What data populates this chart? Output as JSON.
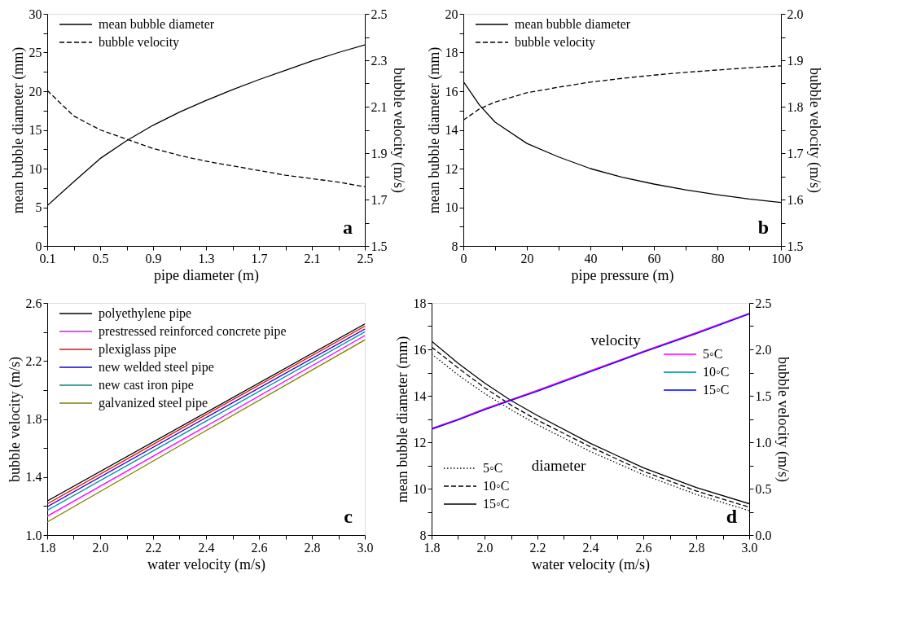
{
  "chart_data": [
    {
      "type": "line",
      "xlabel": "pipe diameter (m)",
      "ylabel": "mean bubble diameter (mm)",
      "y2label": "bubble velocity (m/s)",
      "x": [
        0.1,
        0.3,
        0.5,
        0.7,
        0.9,
        1.1,
        1.3,
        1.5,
        1.7,
        1.9,
        2.1,
        2.3,
        2.5
      ],
      "series": [
        {
          "name": "mean bubble diameter",
          "color": "#000000",
          "line_style": "solid",
          "values": [
            5.2,
            8.3,
            11.3,
            13.6,
            15.6,
            17.3,
            18.8,
            20.2,
            21.5,
            22.7,
            23.9,
            25.0,
            26.0
          ]
        },
        {
          "name": "bubble velocity",
          "color": "#000000",
          "line_style": "dashed",
          "axis": "y2",
          "values": [
            2.17,
            2.06,
            2.0,
            1.96,
            1.92,
            1.89,
            1.865,
            1.845,
            1.825,
            1.805,
            1.79,
            1.775,
            1.755
          ]
        }
      ],
      "xlim": [
        0.1,
        2.5
      ],
      "ylim": [
        0,
        30
      ],
      "y2lim": [
        1.5,
        2.5
      ],
      "xticks": [
        0.1,
        {
          "value": 0.3,
          "label": null
        },
        0.5,
        {
          "value": 0.7,
          "label": null
        },
        0.9,
        {
          "value": 1.1,
          "label": null
        },
        1.3,
        {
          "value": 1.5,
          "label": null
        },
        1.7,
        {
          "value": 1.9,
          "label": null
        },
        2.1,
        {
          "value": 2.3,
          "label": null
        },
        2.5
      ],
      "yticks": [
        0,
        {
          "value": 2.5,
          "label": null
        },
        5,
        {
          "value": 7.5,
          "label": null
        },
        10,
        {
          "value": 12.5,
          "label": null
        },
        15,
        {
          "value": 17.5,
          "label": null
        },
        20,
        {
          "value": 22.5,
          "label": null
        },
        25,
        {
          "value": 27.5,
          "label": null
        },
        30
      ],
      "y2ticks": [
        1.5,
        {
          "value": 1.6,
          "label": null
        },
        1.7,
        {
          "value": 1.8,
          "label": null
        },
        1.9,
        {
          "value": 2.0,
          "label": null
        },
        2.1,
        {
          "value": 2.2,
          "label": null
        },
        2.3,
        {
          "value": 2.4,
          "label": null
        },
        2.5
      ],
      "legend": "top left",
      "grid": false,
      "annotations": [
        "a"
      ]
    },
    {
      "type": "line",
      "xlabel": "pipe pressure (m)",
      "ylabel": "mean bubble diameter (mm)",
      "y2label": "bubble velocity (m/s)",
      "x": [
        0,
        5,
        10,
        20,
        30,
        40,
        50,
        60,
        70,
        80,
        90,
        100
      ],
      "series": [
        {
          "name": "mean bubble diameter",
          "color": "#000000",
          "line_style": "solid",
          "values": [
            16.5,
            15.3,
            14.4,
            13.3,
            12.6,
            12.0,
            11.55,
            11.2,
            10.9,
            10.65,
            10.43,
            10.25
          ]
        },
        {
          "name": "bubble velocity",
          "color": "#000000",
          "line_style": "dashed",
          "axis": "y2",
          "values": [
            1.771,
            1.795,
            1.81,
            1.83,
            1.842,
            1.853,
            1.861,
            1.868,
            1.874,
            1.879,
            1.884,
            1.888
          ]
        }
      ],
      "xlim": [
        0,
        100
      ],
      "ylim": [
        8,
        20
      ],
      "y2lim": [
        1.5,
        2.0
      ],
      "xticks": [
        0,
        {
          "value": 10,
          "label": null
        },
        20,
        {
          "value": 30,
          "label": null
        },
        40,
        {
          "value": 50,
          "label": null
        },
        60,
        {
          "value": 70,
          "label": null
        },
        80,
        {
          "value": 90,
          "label": null
        },
        100
      ],
      "yticks": [
        8,
        {
          "value": 9,
          "label": null
        },
        10,
        {
          "value": 11,
          "label": null
        },
        12,
        {
          "value": 13,
          "label": null
        },
        14,
        {
          "value": 15,
          "label": null
        },
        16,
        {
          "value": 17,
          "label": null
        },
        18,
        {
          "value": 19,
          "label": null
        },
        20
      ],
      "y2ticks": [
        1.5,
        {
          "value": 1.55,
          "label": null
        },
        1.6,
        {
          "value": 1.65,
          "label": null
        },
        1.7,
        {
          "value": 1.75,
          "label": null
        },
        1.8,
        {
          "value": 1.85,
          "label": null
        },
        1.9,
        {
          "value": 1.95,
          "label": null
        },
        {
          "value": 2,
          "label": "2.0"
        }
      ],
      "legend": "top left",
      "grid": false,
      "annotations": [
        "b"
      ]
    },
    {
      "type": "line",
      "xlabel": "water velocity (m/s)",
      "ylabel": "bubble velocity (m/s)",
      "x": [
        1.8,
        2.4,
        3.0
      ],
      "series": [
        {
          "name": "polyethylene pipe",
          "color": "#000000",
          "line_style": "solid",
          "values": [
            1.235,
            1.845,
            2.455
          ]
        },
        {
          "name": "prestressed reinforced concrete pipe",
          "color": "#ff00ff",
          "line_style": "solid",
          "values": [
            1.13,
            1.75,
            2.375
          ]
        },
        {
          "name": "plexiglass pipe",
          "color": "#ff0000",
          "line_style": "solid",
          "values": [
            1.215,
            1.83,
            2.44
          ]
        },
        {
          "name": "new welded steel pipe",
          "color": "#0000ff",
          "line_style": "solid",
          "values": [
            1.195,
            1.81,
            2.42
          ]
        },
        {
          "name": "new cast iron pipe",
          "color": "#008b8b",
          "line_style": "solid",
          "values": [
            1.17,
            1.785,
            2.4
          ]
        },
        {
          "name": "galvanized steel pipe",
          "color": "#808000",
          "line_style": "solid",
          "values": [
            1.09,
            1.72,
            2.345
          ]
        }
      ],
      "xlim": [
        1.8,
        3.0
      ],
      "ylim": [
        1.0,
        2.6
      ],
      "xticks": [
        1.8,
        {
          "value": 1.9,
          "label": null
        },
        {
          "value": 2,
          "label": "2.0"
        },
        {
          "value": 2.1,
          "label": null
        },
        2.2,
        {
          "value": 2.3,
          "label": null
        },
        2.4,
        {
          "value": 2.5,
          "label": null
        },
        2.6,
        {
          "value": 2.7,
          "label": null
        },
        2.8,
        {
          "value": 2.9,
          "label": null
        },
        {
          "value": 3,
          "label": "3.0"
        }
      ],
      "yticks": [
        {
          "value": 1,
          "label": "1.0"
        },
        {
          "value": 1.2,
          "label": null
        },
        1.4,
        {
          "value": 1.6,
          "label": null
        },
        1.8,
        {
          "value": 2.0,
          "label": null
        },
        2.2,
        {
          "value": 2.4,
          "label": null
        },
        2.6
      ],
      "legend": "top left",
      "grid": false,
      "annotations": [
        "c"
      ]
    },
    {
      "type": "line",
      "xlabel": "water velocity (m/s)",
      "ylabel": "mean bubble diameter (mm)",
      "y2label": "bubble velocity (m/s)",
      "x": [
        1.8,
        1.9,
        2.0,
        2.1,
        2.2,
        2.4,
        2.6,
        2.8,
        3.0
      ],
      "series": [
        {
          "name": "5◦C",
          "color": "#000000",
          "line_style": "dotted",
          "values": [
            15.8,
            14.9,
            14.1,
            13.4,
            12.75,
            11.6,
            10.6,
            9.75,
            9.05
          ]
        },
        {
          "name": "10◦C",
          "color": "#000000",
          "line_style": "dashed",
          "values": [
            16.1,
            15.2,
            14.35,
            13.6,
            12.95,
            11.8,
            10.75,
            9.9,
            9.2
          ]
        },
        {
          "name": "15◦C",
          "color": "#000000",
          "line_style": "solid",
          "values": [
            16.35,
            15.4,
            14.55,
            13.8,
            13.15,
            11.95,
            10.9,
            10.05,
            9.35
          ]
        },
        {
          "name": "5◦C",
          "color": "#ff00ff",
          "line_style": "solid",
          "axis": "y2",
          "values": [
            1.15,
            1.25,
            1.36,
            1.46,
            1.56,
            1.77,
            1.98,
            2.18,
            2.39
          ]
        },
        {
          "name": "10◦C",
          "color": "#008b8b",
          "line_style": "solid",
          "axis": "y2",
          "values": [
            null,
            null,
            null,
            null,
            null,
            null,
            null,
            null,
            null
          ]
        },
        {
          "name": "15◦C",
          "color": "#0000ff",
          "line_style": "solid",
          "axis": "y2",
          "values": [
            1.14,
            1.24,
            1.35,
            1.45,
            1.55,
            1.76,
            1.97,
            2.17,
            2.38
          ]
        }
      ],
      "xlim": [
        1.8,
        3.0
      ],
      "ylim": [
        8,
        18
      ],
      "y2lim": [
        0.0,
        2.5
      ],
      "xticks": [
        1.8,
        {
          "value": 1.9,
          "label": null
        },
        {
          "value": 2,
          "label": "2.0"
        },
        {
          "value": 2.1,
          "label": null
        },
        2.2,
        {
          "value": 2.3,
          "label": null
        },
        2.4,
        {
          "value": 2.5,
          "label": null
        },
        2.6,
        {
          "value": 2.7,
          "label": null
        },
        2.8,
        {
          "value": 2.9,
          "label": null
        },
        {
          "value": 3,
          "label": "3.0"
        }
      ],
      "yticks": [
        8,
        {
          "value": 9,
          "label": null
        },
        10,
        {
          "value": 11,
          "label": null
        },
        12,
        {
          "value": 13,
          "label": null
        },
        14,
        {
          "value": 15,
          "label": null
        },
        16,
        {
          "value": 17,
          "label": null
        },
        18
      ],
      "y2ticks": [
        {
          "value": 0,
          "label": "0.0"
        },
        {
          "value": 0.25,
          "label": null
        },
        0.5,
        {
          "value": 0.75,
          "label": null
        },
        {
          "value": 1,
          "label": "1.0"
        },
        {
          "value": 1.25,
          "label": null
        },
        1.5,
        {
          "value": 1.75,
          "label": null
        },
        {
          "value": 2,
          "label": "2.0"
        },
        {
          "value": 2.25,
          "label": null
        },
        2.5
      ],
      "legend": "bottom left",
      "grid": false,
      "annotations": [
        "velocity",
        "diameter",
        "d"
      ]
    }
  ]
}
